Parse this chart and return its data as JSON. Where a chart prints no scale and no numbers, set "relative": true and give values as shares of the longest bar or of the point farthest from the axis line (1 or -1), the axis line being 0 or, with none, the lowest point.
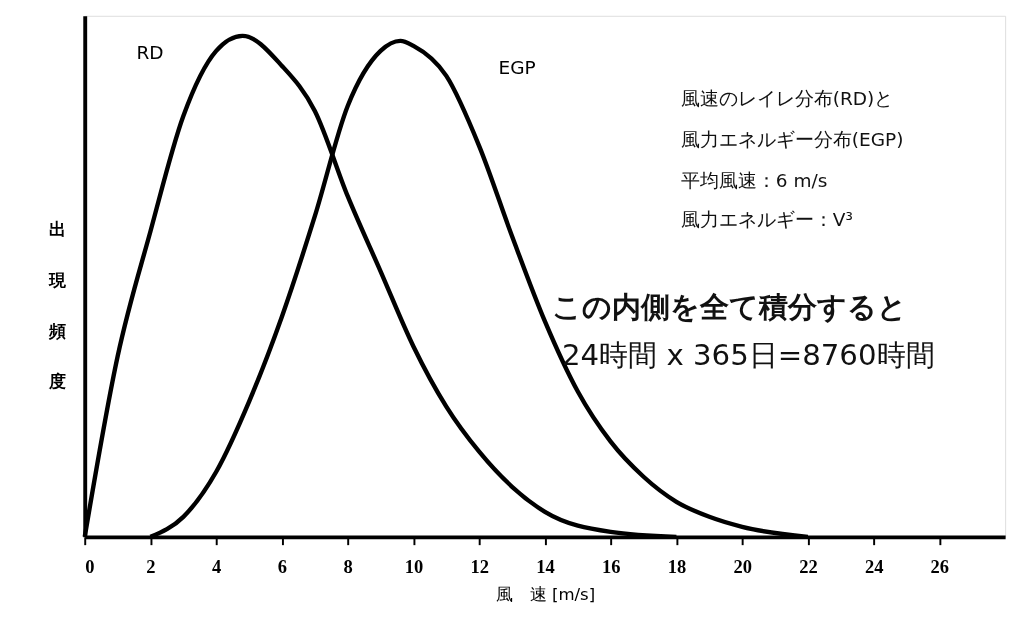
{
  "chart_data": {
    "type": "line",
    "relative": true,
    "xlabel": "風　速 [m/s]",
    "ylabel": "出現頻度",
    "xlim": [
      0,
      28
    ],
    "xticks": [
      0,
      2,
      4,
      6,
      8,
      10,
      12,
      14,
      16,
      18,
      20,
      22,
      24,
      26
    ],
    "series": [
      {
        "name": "RD",
        "color": "#000000",
        "x": [
          0,
          1,
          2,
          3,
          4,
          4.8,
          6,
          7,
          8,
          9,
          10,
          11,
          12,
          13,
          14,
          16,
          18
        ],
        "values": [
          0,
          0.36,
          0.61,
          0.84,
          0.97,
          1,
          0.94,
          0.85,
          0.68,
          0.53,
          0.38,
          0.26,
          0.17,
          0.1,
          0.05,
          0.01,
          0
        ]
      },
      {
        "name": "EGP",
        "color": "#000000",
        "x": [
          2,
          3,
          4,
          5,
          6,
          7,
          8,
          9,
          9.6,
          10,
          11,
          12,
          13,
          14,
          15,
          16,
          17,
          18,
          19,
          20,
          22
        ],
        "values": [
          0,
          0.04,
          0.13,
          0.27,
          0.44,
          0.64,
          0.86,
          0.97,
          0.99,
          0.98,
          0.92,
          0.78,
          0.6,
          0.43,
          0.29,
          0.19,
          0.12,
          0.07,
          0.04,
          0.02,
          0
        ]
      }
    ],
    "annotations": [
      "風速のレイレ分布(RD)と",
      "風力エネルギー分布(EGP)",
      "平均風速：6 m/s",
      "風力エネルギー：V³",
      "この内側を全て積分すると",
      "24時間 x 365日=8760時間"
    ],
    "line_style": "solid",
    "marker": "none"
  }
}
